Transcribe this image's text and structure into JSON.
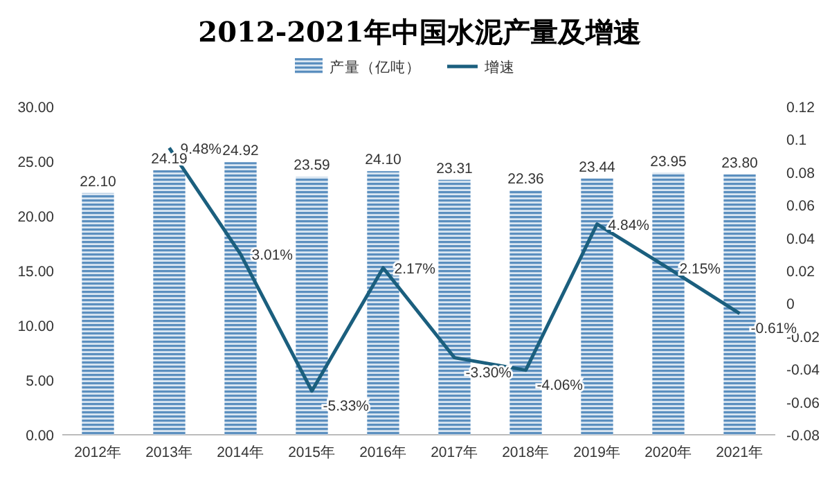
{
  "chart_data": {
    "type": "bar",
    "title": "2012-2021年中国水泥产量及增速",
    "categories": [
      "2012年",
      "2013年",
      "2014年",
      "2015年",
      "2016年",
      "2017年",
      "2018年",
      "2019年",
      "2020年",
      "2021年"
    ],
    "series": [
      {
        "name": "产量（亿吨）",
        "color": "#5b8fbf",
        "values": [
          22.1,
          24.19,
          24.92,
          23.59,
          24.1,
          23.31,
          22.36,
          23.44,
          23.95,
          23.8
        ],
        "value_labels": [
          "22.10",
          "24.19",
          "24.92",
          "23.59",
          "24.10",
          "23.31",
          "22.36",
          "23.44",
          "23.95",
          "23.80"
        ]
      },
      {
        "name": "增速",
        "type": "line",
        "axis": "y2",
        "color": "#1b5f7e",
        "values": [
          null,
          0.0948,
          0.0301,
          -0.0533,
          0.0217,
          -0.033,
          -0.0406,
          0.0484,
          0.0215,
          -0.0061
        ],
        "value_labels": [
          null,
          "9.48%",
          "3.01%",
          "-5.33%",
          "2.17%",
          "-3.30%",
          "-4.06%",
          "4.84%",
          "2.15%",
          "-0.61%"
        ]
      }
    ],
    "ylim": [
      0,
      30
    ],
    "yticks": [
      {
        "value": 0,
        "label": "0.00"
      },
      {
        "value": 5,
        "label": "5.00"
      },
      {
        "value": 10,
        "label": "10.00"
      },
      {
        "value": 15,
        "label": "15.00"
      },
      {
        "value": 20,
        "label": "20.00"
      },
      {
        "value": 25,
        "label": "25.00"
      },
      {
        "value": 30,
        "label": "30.00"
      }
    ],
    "y2lim": [
      -0.08,
      0.12
    ],
    "y2ticks": [
      -0.08,
      -0.06,
      -0.04,
      -0.02,
      0,
      0.02,
      0.04,
      0.06,
      0.08,
      0.1,
      0.12
    ],
    "legend": "top",
    "grid": false,
    "marker": "none",
    "line_style": "solid"
  }
}
